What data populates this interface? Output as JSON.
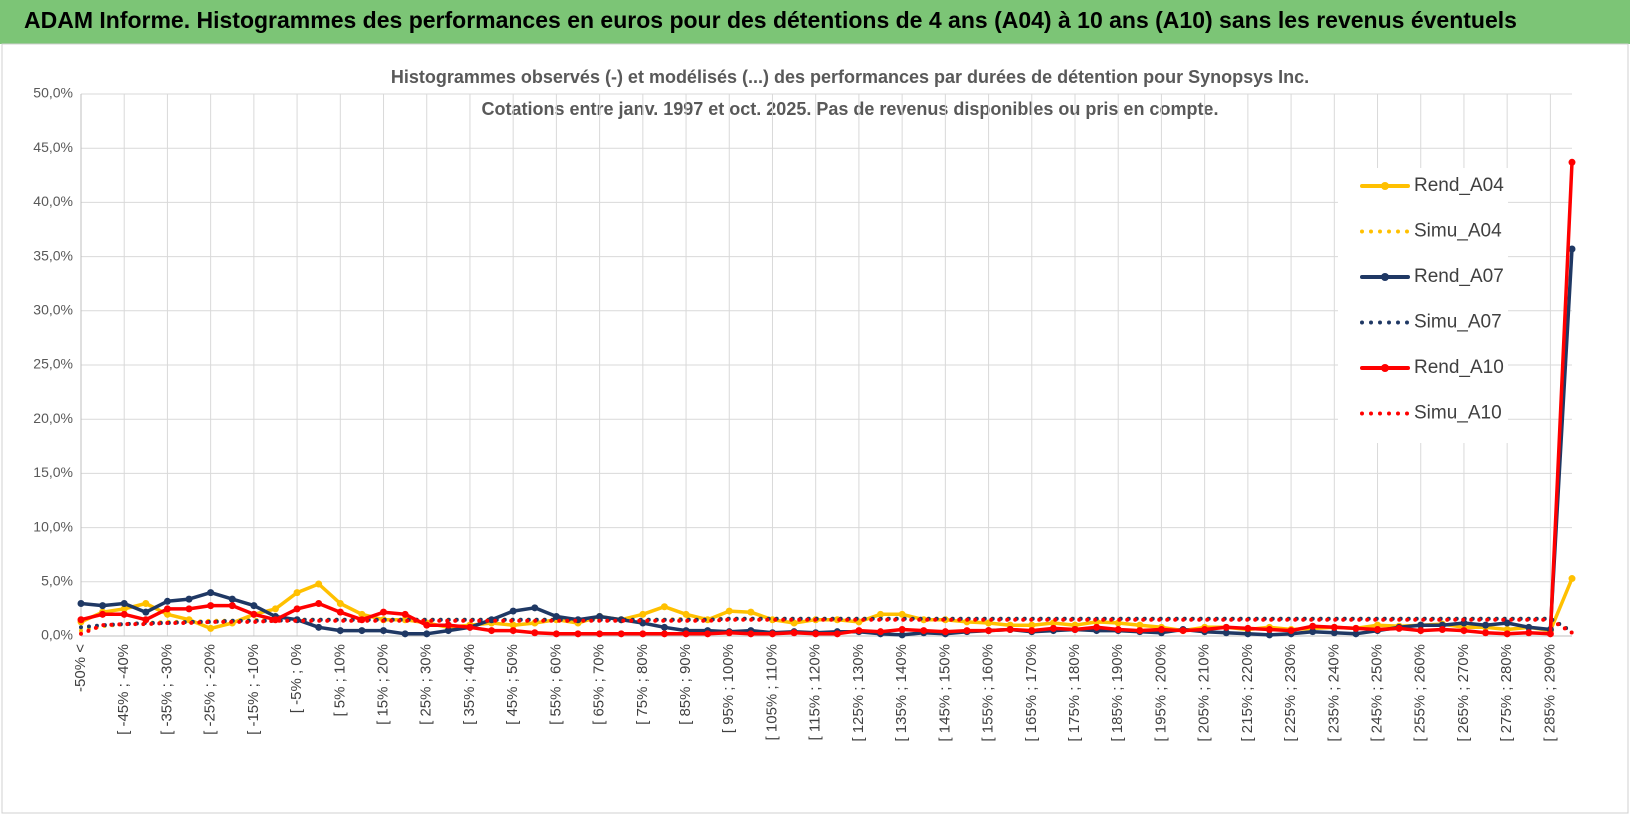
{
  "page_title": "ADAM Informe. Histogrammes des performances en euros pour des détentions de 4 ans (A04) à 10 ans (A10) sans les revenus éventuels",
  "chart_data": {
    "type": "line",
    "title": "Histogrammes observés (-) et modélisés (...) des performances par durées de détention pour Synopsys Inc.",
    "subtitle": "Cotations entre janv. 1997 et oct. 2025. Pas de revenus disponibles ou pris en compte.",
    "categories": [
      "-50% <",
      null,
      "[ -45% ; -40%",
      null,
      "[ -35% ; -30%",
      null,
      "[ -25% ; -20%",
      null,
      "[ -15% ; -10%",
      null,
      "[ -5% ; 0%",
      null,
      "[ 5% ; 10%",
      null,
      "[ 15% ; 20%",
      null,
      "[ 25% ; 30%",
      null,
      "[ 35% ; 40%",
      null,
      "[ 45% ; 50%",
      null,
      "[ 55% ; 60%",
      null,
      "[ 65% ; 70%",
      null,
      "[ 75% ; 80%",
      null,
      "[ 85% ; 90%",
      null,
      "[ 95% ; 100%",
      null,
      "[ 105% ; 110%",
      null,
      "[ 115% ; 120%",
      null,
      "[ 125% ; 130%",
      null,
      "[ 135% ; 140%",
      null,
      "[ 145% ; 150%",
      null,
      "[ 155% ; 160%",
      null,
      "[ 165% ; 170%",
      null,
      "[ 175% ; 180%",
      null,
      "[ 185% ; 190%",
      null,
      "[ 195% ; 200%",
      null,
      "[ 205% ; 210%",
      null,
      "[ 215% ; 220%",
      null,
      "[ 225% ; 230%",
      null,
      "[ 235% ; 240%",
      null,
      "[ 245% ; 250%",
      null,
      "[ 255% ; 260%",
      null,
      "[ 265% ; 270%",
      null,
      "[ 275% ; 280%",
      null,
      "[ 285% ; 290%",
      null
    ],
    "series": [
      {
        "name": "Rend_A04",
        "color": "#ffc000",
        "style": "solid",
        "values": [
          1.3,
          2.2,
          2.5,
          3.0,
          2.0,
          1.5,
          0.7,
          1.2,
          2.0,
          2.5,
          4.0,
          4.8,
          3.0,
          2.0,
          1.5,
          1.5,
          1.2,
          0.8,
          1.0,
          1.2,
          1.0,
          1.2,
          1.5,
          1.2,
          1.8,
          1.5,
          2.0,
          2.7,
          2.0,
          1.5,
          2.3,
          2.2,
          1.5,
          1.2,
          1.5,
          1.5,
          1.3,
          2.0,
          2.0,
          1.5,
          1.5,
          1.3,
          1.2,
          1.0,
          1.0,
          1.2,
          1.0,
          1.3,
          1.2,
          1.0,
          0.8,
          0.5,
          0.8,
          0.8,
          0.6,
          0.8,
          0.6,
          0.7,
          0.8,
          0.7,
          1.0,
          0.9,
          1.0,
          1.1,
          0.8,
          0.8,
          0.6,
          0.8,
          0.5,
          5.3
        ]
      },
      {
        "name": "Simu_A04",
        "color": "#ffc000",
        "style": "dotted",
        "values": [
          0.5,
          0.9,
          1.1,
          1.2,
          1.3,
          1.3,
          1.4,
          1.4,
          1.5,
          1.5,
          1.5,
          1.5,
          1.5,
          1.5,
          1.5,
          1.5,
          1.5,
          1.5,
          1.5,
          1.5,
          1.5,
          1.5,
          1.5,
          1.5,
          1.5,
          1.5,
          1.5,
          1.5,
          1.6,
          1.6,
          1.6,
          1.6,
          1.6,
          1.6,
          1.6,
          1.6,
          1.6,
          1.6,
          1.6,
          1.6,
          1.6,
          1.6,
          1.6,
          1.6,
          1.6,
          1.6,
          1.6,
          1.6,
          1.6,
          1.6,
          1.6,
          1.6,
          1.6,
          1.6,
          1.6,
          1.6,
          1.6,
          1.6,
          1.6,
          1.6,
          1.6,
          1.6,
          1.6,
          1.6,
          1.6,
          1.6,
          1.6,
          1.6,
          1.6,
          0.4
        ]
      },
      {
        "name": "Rend_A07",
        "color": "#1f3864",
        "style": "solid",
        "values": [
          3.0,
          2.8,
          3.0,
          2.2,
          3.2,
          3.4,
          4.0,
          3.4,
          2.8,
          1.8,
          1.5,
          0.8,
          0.5,
          0.5,
          0.5,
          0.2,
          0.2,
          0.5,
          0.8,
          1.5,
          2.3,
          2.6,
          1.8,
          1.5,
          1.8,
          1.5,
          1.2,
          0.8,
          0.5,
          0.5,
          0.4,
          0.5,
          0.3,
          0.4,
          0.3,
          0.4,
          0.4,
          0.2,
          0.1,
          0.3,
          0.2,
          0.4,
          0.5,
          0.6,
          0.4,
          0.5,
          0.6,
          0.5,
          0.5,
          0.4,
          0.3,
          0.6,
          0.4,
          0.3,
          0.2,
          0.1,
          0.2,
          0.4,
          0.3,
          0.2,
          0.5,
          0.8,
          1.0,
          1.0,
          1.2,
          1.0,
          1.2,
          0.8,
          0.6,
          35.7
        ]
      },
      {
        "name": "Simu_A07",
        "color": "#1f3864",
        "style": "dotted",
        "values": [
          0.8,
          1.0,
          1.1,
          1.2,
          1.2,
          1.3,
          1.3,
          1.4,
          1.4,
          1.4,
          1.5,
          1.5,
          1.5,
          1.5,
          1.5,
          1.5,
          1.5,
          1.5,
          1.5,
          1.5,
          1.5,
          1.5,
          1.5,
          1.5,
          1.5,
          1.5,
          1.5,
          1.5,
          1.5,
          1.5,
          1.6,
          1.6,
          1.6,
          1.6,
          1.6,
          1.6,
          1.6,
          1.6,
          1.6,
          1.6,
          1.6,
          1.6,
          1.6,
          1.6,
          1.6,
          1.6,
          1.6,
          1.6,
          1.6,
          1.6,
          1.6,
          1.6,
          1.6,
          1.6,
          1.6,
          1.6,
          1.6,
          1.6,
          1.6,
          1.6,
          1.6,
          1.6,
          1.6,
          1.6,
          1.6,
          1.6,
          1.6,
          1.6,
          1.6,
          0.4
        ]
      },
      {
        "name": "Rend_A10",
        "color": "#ff0000",
        "style": "solid",
        "values": [
          1.5,
          2.0,
          2.0,
          1.5,
          2.5,
          2.5,
          2.8,
          2.8,
          2.0,
          1.5,
          2.5,
          3.0,
          2.2,
          1.5,
          2.2,
          2.0,
          1.0,
          1.0,
          0.8,
          0.5,
          0.5,
          0.3,
          0.2,
          0.2,
          0.2,
          0.2,
          0.2,
          0.2,
          0.2,
          0.2,
          0.3,
          0.2,
          0.2,
          0.3,
          0.2,
          0.2,
          0.5,
          0.4,
          0.6,
          0.5,
          0.4,
          0.5,
          0.5,
          0.6,
          0.5,
          0.7,
          0.6,
          0.8,
          0.6,
          0.5,
          0.6,
          0.5,
          0.6,
          0.8,
          0.7,
          0.6,
          0.5,
          0.9,
          0.8,
          0.7,
          0.6,
          0.7,
          0.5,
          0.6,
          0.5,
          0.3,
          0.2,
          0.3,
          0.2,
          43.7
        ]
      },
      {
        "name": "Simu_A10",
        "color": "#ff0000",
        "style": "dotted",
        "values": [
          0.2,
          1.0,
          1.1,
          1.1,
          1.2,
          1.2,
          1.3,
          1.3,
          1.3,
          1.4,
          1.4,
          1.4,
          1.4,
          1.4,
          1.4,
          1.4,
          1.4,
          1.4,
          1.4,
          1.4,
          1.4,
          1.4,
          1.4,
          1.4,
          1.4,
          1.4,
          1.4,
          1.4,
          1.4,
          1.4,
          1.5,
          1.5,
          1.5,
          1.5,
          1.5,
          1.5,
          1.5,
          1.5,
          1.5,
          1.5,
          1.5,
          1.5,
          1.5,
          1.5,
          1.5,
          1.5,
          1.5,
          1.5,
          1.5,
          1.5,
          1.5,
          1.5,
          1.5,
          1.5,
          1.5,
          1.5,
          1.5,
          1.5,
          1.5,
          1.5,
          1.5,
          1.5,
          1.5,
          1.5,
          1.5,
          1.5,
          1.5,
          1.5,
          1.5,
          0.3
        ]
      }
    ],
    "ylim": [
      0,
      50
    ],
    "yticks": [
      {
        "value": 0,
        "label": "0,0%"
      },
      {
        "value": 5,
        "label": "5,0%"
      },
      {
        "value": 10,
        "label": "10,0%"
      },
      {
        "value": 15,
        "label": "15,0%"
      },
      {
        "value": 20,
        "label": "20,0%"
      },
      {
        "value": 25,
        "label": "25,0%"
      },
      {
        "value": 30,
        "label": "30,0%"
      },
      {
        "value": 35,
        "label": "35,0%"
      },
      {
        "value": 40,
        "label": "40,0%"
      },
      {
        "value": 45,
        "label": "45,0%"
      },
      {
        "value": 50,
        "label": "50,0%"
      }
    ],
    "grid": true,
    "legend": "right"
  }
}
